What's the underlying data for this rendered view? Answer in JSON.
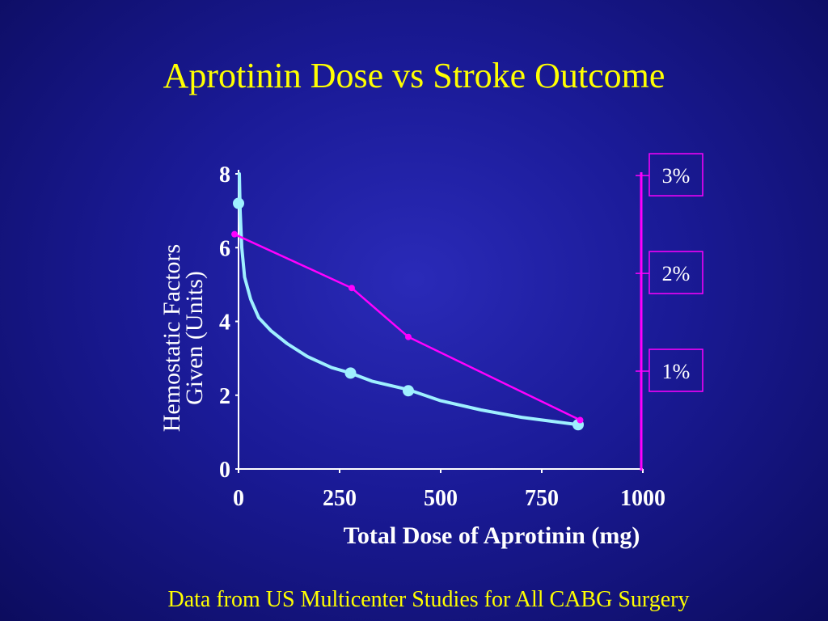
{
  "slide": {
    "title": "Aprotinin Dose vs Stroke Outcome",
    "footnote": "Data from US Multicenter Studies for All CABG Surgery"
  },
  "chart_data": {
    "type": "line",
    "x_label": "Total Dose of Aprotinin (mg)",
    "y_label_lines": [
      "Hemostatic Factors",
      "Given (Units)"
    ],
    "x_ticks": [
      0,
      250,
      500,
      750,
      1000
    ],
    "y_ticks": [
      0,
      2,
      4,
      6,
      8
    ],
    "xlim": [
      0,
      1000
    ],
    "ylim": [
      0,
      8
    ],
    "y2_ticks": [
      {
        "label": "1%",
        "value": 1
      },
      {
        "label": "2%",
        "value": 2
      },
      {
        "label": "3%",
        "value": 3
      }
    ],
    "y2lim": [
      0,
      3.1
    ],
    "series": [
      {
        "role": "hemostatic-factors",
        "axis": "left",
        "color": "#9ff0ff",
        "curve": [
          [
            2,
            8
          ],
          [
            4,
            7.0
          ],
          [
            8,
            6.0
          ],
          [
            15,
            5.2
          ],
          [
            30,
            4.6
          ],
          [
            50,
            4.1
          ],
          [
            80,
            3.75
          ],
          [
            120,
            3.4
          ],
          [
            170,
            3.05
          ],
          [
            230,
            2.75
          ],
          [
            277,
            2.6
          ],
          [
            330,
            2.38
          ],
          [
            420,
            2.15
          ],
          [
            500,
            1.85
          ],
          [
            600,
            1.6
          ],
          [
            700,
            1.4
          ],
          [
            840,
            1.2
          ]
        ],
        "points": [
          [
            0,
            7.2
          ],
          [
            277,
            2.6
          ],
          [
            420,
            2.12
          ],
          [
            840,
            1.2
          ]
        ]
      },
      {
        "role": "stroke-rate",
        "axis": "right",
        "color": "#ff00ff",
        "points": [
          [
            -10,
            2.4
          ],
          [
            280,
            1.85
          ],
          [
            420,
            1.35
          ],
          [
            845,
            0.5
          ]
        ]
      }
    ]
  }
}
